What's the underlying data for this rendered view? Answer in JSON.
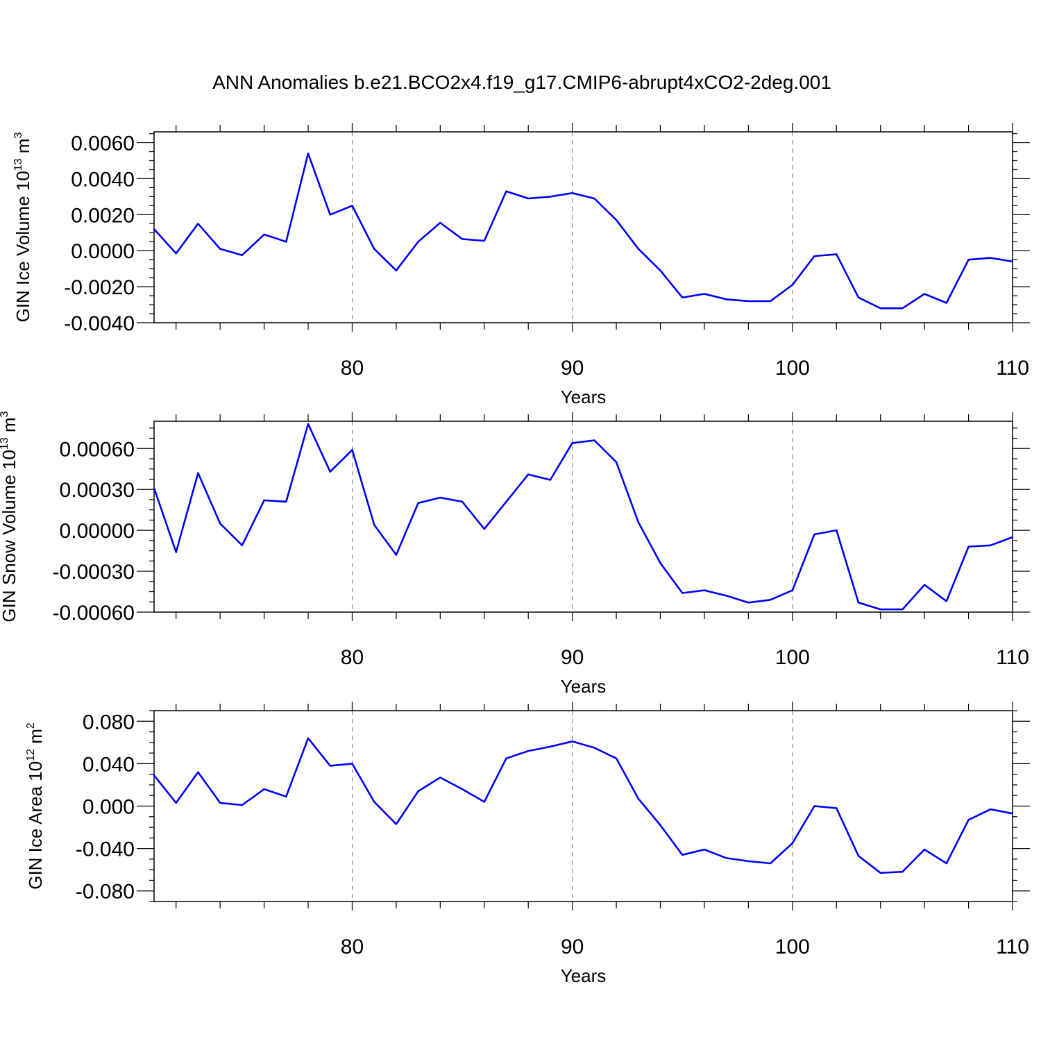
{
  "title": "ANN Anomalies b.e21.BCO2x4.f19_g17.CMIP6-abrupt4xCO2-2deg.001",
  "line_color": "#0000ff",
  "chart_data": [
    {
      "type": "line",
      "ylabel": {
        "prefix": "GIN Ice Volume 10",
        "exp": "13",
        "unit": " m",
        "unit_exp": "3"
      },
      "xlabel": "Years",
      "xlim": [
        71,
        110
      ],
      "ylim": [
        -0.004,
        0.0066
      ],
      "yticks": [
        -0.004,
        -0.002,
        0.0,
        0.002,
        0.004,
        0.006
      ],
      "ytick_labels": [
        "-0.0040",
        "-0.0020",
        "0.0000",
        "0.0020",
        "0.0040",
        "0.0060"
      ],
      "xticks": [
        80,
        90,
        100,
        110
      ],
      "xtick_labels": [
        "80",
        "90",
        "100",
        "110"
      ],
      "grid": "dashed verticals at labeled x ticks",
      "x": [
        71,
        72,
        73,
        74,
        75,
        76,
        77,
        78,
        79,
        80,
        81,
        82,
        83,
        84,
        85,
        86,
        87,
        88,
        89,
        90,
        91,
        92,
        93,
        94,
        95,
        96,
        97,
        98,
        99,
        100,
        101,
        102,
        103,
        104,
        105,
        106,
        107,
        108,
        109,
        110
      ],
      "y": [
        0.0012,
        -0.00015,
        0.0015,
        0.0001,
        -0.00025,
        0.0009,
        0.0005,
        0.0054,
        0.002,
        0.0025,
        0.0001,
        -0.0011,
        0.0005,
        0.00155,
        0.00065,
        0.00055,
        0.0033,
        0.0029,
        0.003,
        0.0032,
        0.0029,
        0.0017,
        0.0001,
        -0.0011,
        -0.0026,
        -0.0024,
        -0.0027,
        -0.0028,
        -0.0028,
        -0.0019,
        -0.0003,
        -0.0002,
        -0.0026,
        -0.0032,
        -0.0032,
        -0.0024,
        -0.0029,
        -0.0005,
        -0.0004,
        -0.0006
      ]
    },
    {
      "type": "line",
      "ylabel": {
        "prefix": "GIN Snow Volume 10",
        "exp": "13",
        "unit": " m",
        "unit_exp": "3"
      },
      "xlabel": "Years",
      "xlim": [
        71,
        110
      ],
      "ylim": [
        -0.0006,
        0.0008
      ],
      "yticks": [
        -0.0006,
        -0.0003,
        0.0,
        0.0003,
        0.0006
      ],
      "ytick_labels": [
        "-0.00060",
        "-0.00030",
        "0.00000",
        "0.00030",
        "0.00060"
      ],
      "xticks": [
        80,
        90,
        100,
        110
      ],
      "xtick_labels": [
        "80",
        "90",
        "100",
        "110"
      ],
      "grid": "dashed verticals at labeled x ticks",
      "x": [
        71,
        72,
        73,
        74,
        75,
        76,
        77,
        78,
        79,
        80,
        81,
        82,
        83,
        84,
        85,
        86,
        87,
        88,
        89,
        90,
        91,
        92,
        93,
        94,
        95,
        96,
        97,
        98,
        99,
        100,
        101,
        102,
        103,
        104,
        105,
        106,
        107,
        108,
        109,
        110
      ],
      "y": [
        0.00031,
        -0.00016,
        0.00042,
        5e-05,
        -0.00011,
        0.00022,
        0.00021,
        0.00078,
        0.00043,
        0.00059,
        4e-05,
        -0.00018,
        0.0002,
        0.00024,
        0.00021,
        1e-05,
        0.00021,
        0.00041,
        0.00037,
        0.00064,
        0.00066,
        0.0005,
        6e-05,
        -0.00024,
        -0.00046,
        -0.00044,
        -0.00048,
        -0.00053,
        -0.00051,
        -0.00044,
        -3e-05,
        0.0,
        -0.00053,
        -0.00058,
        -0.00058,
        -0.0004,
        -0.00052,
        -0.00012,
        -0.00011,
        -5e-05
      ]
    },
    {
      "type": "line",
      "ylabel": {
        "prefix": "GIN Ice Area 10",
        "exp": "12",
        "unit": " m",
        "unit_exp": "2"
      },
      "xlabel": "Years",
      "xlim": [
        71,
        110
      ],
      "ylim": [
        -0.09,
        0.09
      ],
      "yticks": [
        -0.08,
        -0.04,
        0.0,
        0.04,
        0.08
      ],
      "ytick_labels": [
        "-0.080",
        "-0.040",
        "0.000",
        "0.040",
        "0.080"
      ],
      "xticks": [
        80,
        90,
        100,
        110
      ],
      "xtick_labels": [
        "80",
        "90",
        "100",
        "110"
      ],
      "grid": "dashed verticals at labeled x ticks",
      "x": [
        71,
        72,
        73,
        74,
        75,
        76,
        77,
        78,
        79,
        80,
        81,
        82,
        83,
        84,
        85,
        86,
        87,
        88,
        89,
        90,
        91,
        92,
        93,
        94,
        95,
        96,
        97,
        98,
        99,
        100,
        101,
        102,
        103,
        104,
        105,
        106,
        107,
        108,
        109,
        110
      ],
      "y": [
        0.029,
        0.003,
        0.032,
        0.003,
        0.001,
        0.016,
        0.009,
        0.064,
        0.038,
        0.04,
        0.004,
        -0.017,
        0.014,
        0.027,
        0.016,
        0.004,
        0.045,
        0.052,
        0.056,
        0.061,
        0.055,
        0.045,
        0.007,
        -0.018,
        -0.046,
        -0.041,
        -0.049,
        -0.052,
        -0.054,
        -0.035,
        0.0,
        -0.002,
        -0.047,
        -0.063,
        -0.062,
        -0.041,
        -0.054,
        -0.013,
        -0.003,
        -0.007
      ]
    }
  ]
}
